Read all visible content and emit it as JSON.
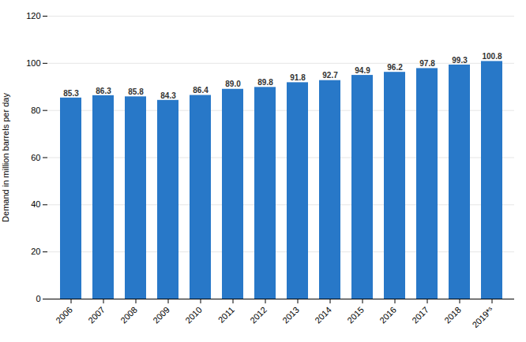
{
  "chart_data": {
    "type": "bar",
    "categories": [
      "2006",
      "2007",
      "2008",
      "2009",
      "2010",
      "2011",
      "2012",
      "2013",
      "2014",
      "2015",
      "2016",
      "2017",
      "2018",
      "2019*ˢ"
    ],
    "values": [
      85.3,
      86.3,
      85.8,
      84.3,
      86.4,
      89.0,
      89.8,
      91.8,
      92.7,
      94.9,
      96.2,
      97.8,
      99.3,
      100.8
    ],
    "value_labels": [
      "85.3",
      "86.3",
      "85.8",
      "84.3",
      "86.4",
      "89.0",
      "89.8",
      "91.8",
      "92.7",
      "94.9",
      "96.2",
      "97.8",
      "99.3",
      "100.8"
    ],
    "color": "#2878C8",
    "ylabel": "Demand in million barrels per day",
    "ylim": [
      0,
      120
    ],
    "yticks": [
      0,
      20,
      40,
      60,
      80,
      100,
      120
    ],
    "grid": true,
    "data_labels": true
  }
}
